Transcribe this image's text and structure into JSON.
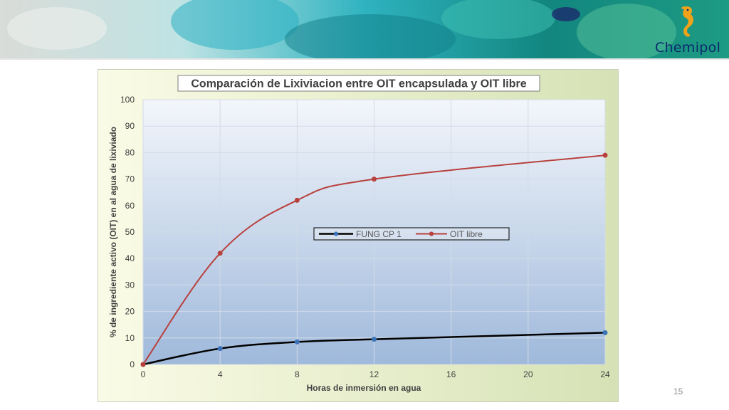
{
  "branding": {
    "logo_text": "Chemipol",
    "logo_icon": "seahorse-icon"
  },
  "slide": {
    "page_number": "15"
  },
  "colors": {
    "series_1": "#000000",
    "series_1_markers": "#3b73b9",
    "series_2": "#b8413e",
    "plot_bg_top": "#f3f6fb",
    "plot_bg_bottom": "#9fb9db",
    "chart_bg_left": "#fafbe6",
    "chart_bg_right": "#d6e2b5"
  },
  "chart_data": {
    "type": "line",
    "title": "Comparación de Lixiviacion entre OIT encapsulada y OIT libre",
    "xlabel": "Horas  de inmersión en agua",
    "ylabel": "% de ingrediente activo (OIT)  en al agua de lixiviado",
    "xlim": [
      0,
      24
    ],
    "ylim": [
      0,
      100
    ],
    "x_ticks": [
      0,
      4,
      8,
      12,
      16,
      20,
      24
    ],
    "y_ticks": [
      0,
      10,
      20,
      30,
      40,
      50,
      60,
      70,
      80,
      90,
      100
    ],
    "grid": true,
    "legend_position": "center-right",
    "series": [
      {
        "name": "FUNG CP 1",
        "x": [
          0,
          4,
          8,
          12,
          24
        ],
        "values": [
          0,
          6,
          8.5,
          9.5,
          12
        ]
      },
      {
        "name": "OIT libre",
        "x": [
          0,
          4,
          8,
          12,
          24
        ],
        "values": [
          0,
          42,
          62,
          70,
          79
        ]
      }
    ]
  }
}
